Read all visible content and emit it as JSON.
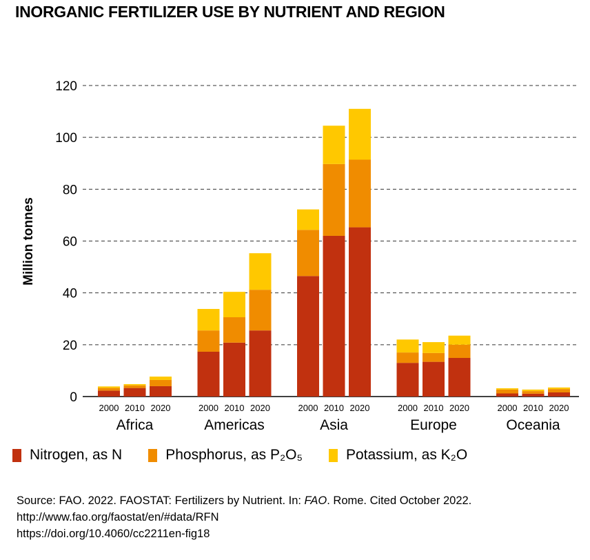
{
  "title": "INORGANIC FERTILIZER USE BY NUTRIENT AND REGION",
  "chart_data": {
    "type": "bar",
    "stacked": true,
    "title": "INORGANIC FERTILIZER USE BY NUTRIENT AND REGION",
    "ylabel": "Million tonnes",
    "xlabel": "",
    "ylim": [
      0,
      120
    ],
    "yticks": [
      0,
      20,
      40,
      60,
      80,
      100,
      120
    ],
    "grid": "horizontal dashed",
    "legend_position": "bottom",
    "groups": [
      "Africa",
      "Americas",
      "Asia",
      "Europe",
      "Oceania"
    ],
    "years": [
      "2000",
      "2010",
      "2020"
    ],
    "series": [
      {
        "name": "Nitrogen, as N",
        "color": "#C1310F",
        "values": [
          [
            2.3,
            3.3,
            4.0
          ],
          [
            17.3,
            20.8,
            25.5
          ],
          [
            46.5,
            62.0,
            65.3
          ],
          [
            13.0,
            13.4,
            14.9
          ],
          [
            1.2,
            1.1,
            1.6
          ]
        ]
      },
      {
        "name": "Phosphorus, as P₂O₅",
        "color": "#F08C00",
        "values": [
          [
            1.0,
            1.0,
            2.4
          ],
          [
            8.2,
            9.8,
            15.7
          ],
          [
            17.8,
            27.7,
            26.1
          ],
          [
            4.0,
            3.4,
            5.1
          ],
          [
            1.5,
            1.0,
            1.3
          ]
        ]
      },
      {
        "name": "Potassium, as K₂O",
        "color": "#FFC800",
        "values": [
          [
            0.6,
            0.5,
            1.3
          ],
          [
            8.3,
            9.8,
            14.1
          ],
          [
            7.9,
            14.8,
            19.6
          ],
          [
            5.0,
            4.2,
            3.5
          ],
          [
            0.5,
            0.6,
            0.6
          ]
        ]
      }
    ]
  },
  "source": {
    "line1_prefix": "Source: FAO. 2022. FAOSTAT: Fertilizers by Nutrient. In: ",
    "line1_italic": "FAO",
    "line1_suffix": ". Rome. Cited October 2022.",
    "line2": "http://www.fao.org/faostat/en/#data/RFN",
    "line3": "https://doi.org/10.4060/cc2211en-fig18"
  }
}
